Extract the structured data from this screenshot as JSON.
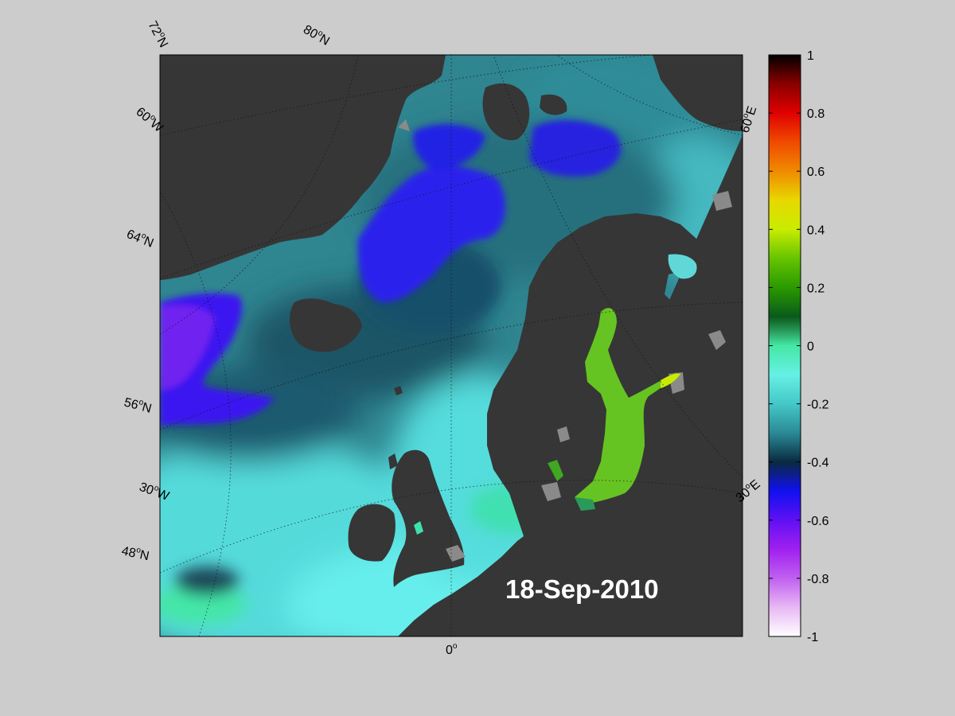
{
  "map": {
    "date": "18-Sep-2010",
    "graticule_labels": {
      "lat_left": [
        "72",
        "64",
        "56",
        "48"
      ],
      "lat_top": [
        "80"
      ],
      "lon_left": [
        "60",
        "30"
      ],
      "lon_bottom": [
        "0"
      ],
      "lon_right": [
        "60",
        "30"
      ],
      "lat_suffix": "N",
      "lon_suffix_west": "W",
      "lon_suffix_east": "E",
      "degree": "o"
    },
    "colors": {
      "land": "#363636",
      "lake_gray": "#8a8a8a",
      "background": "#cccccc",
      "date_text": "#ffffff"
    }
  },
  "colorbar": {
    "ticks": [
      "1",
      "0.8",
      "0.6",
      "0.4",
      "0.2",
      "0",
      "-0.2",
      "-0.4",
      "-0.6",
      "-0.8",
      "-1"
    ],
    "range": [
      -1,
      1
    ],
    "stops": [
      {
        "v": 1.0,
        "c": "#000000"
      },
      {
        "v": 0.9,
        "c": "#8a0000"
      },
      {
        "v": 0.8,
        "c": "#e00000"
      },
      {
        "v": 0.7,
        "c": "#f04a00"
      },
      {
        "v": 0.6,
        "c": "#f08a00"
      },
      {
        "v": 0.5,
        "c": "#e8d800"
      },
      {
        "v": 0.4,
        "c": "#c8ec00"
      },
      {
        "v": 0.3,
        "c": "#66c400"
      },
      {
        "v": 0.2,
        "c": "#2a9a00"
      },
      {
        "v": 0.1,
        "c": "#0a5a1a"
      },
      {
        "v": 0.05,
        "c": "#2a9a5a"
      },
      {
        "v": 0.0,
        "c": "#44e8a4"
      },
      {
        "v": -0.1,
        "c": "#66f0e4"
      },
      {
        "v": -0.2,
        "c": "#44c8c8"
      },
      {
        "v": -0.3,
        "c": "#2a8a96"
      },
      {
        "v": -0.4,
        "c": "#0a2a40"
      },
      {
        "v": -0.5,
        "c": "#1010f0"
      },
      {
        "v": -0.6,
        "c": "#6010f4"
      },
      {
        "v": -0.7,
        "c": "#a020f0"
      },
      {
        "v": -0.8,
        "c": "#c060f0"
      },
      {
        "v": -0.9,
        "c": "#e8b8f4"
      },
      {
        "v": -1.0,
        "c": "#ffffff"
      }
    ]
  }
}
